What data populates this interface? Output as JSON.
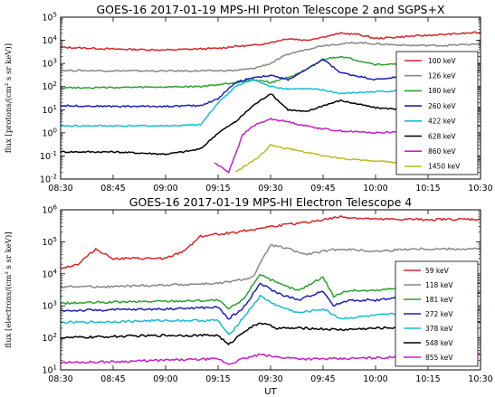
{
  "chart_data": [
    {
      "type": "line",
      "title": "GOES-16 2017-01-19 MPS-HI Proton Telescope 2 and SGPS+X",
      "ylabel": "flux [protons/(cm² s sr keV)]",
      "xlabel": "",
      "yscale": "log",
      "ylim_exp": [
        -2,
        5
      ],
      "ytick_labels": [
        "10^-2",
        "10^-1",
        "10^0",
        "10^1",
        "10^2",
        "10^3",
        "10^4",
        "10^5"
      ],
      "xlim": [
        "08:30",
        "10:30"
      ],
      "xtick_labels": [
        "08:30",
        "08:45",
        "09:00",
        "09:15",
        "09:30",
        "09:45",
        "10:00",
        "10:15",
        "10:30"
      ],
      "legend_position": "right",
      "series": [
        {
          "name": "100 keV",
          "color": "#d62728",
          "x": [
            "08:30",
            "08:45",
            "09:00",
            "09:15",
            "09:20",
            "09:25",
            "09:30",
            "09:35",
            "09:40",
            "09:45",
            "09:50",
            "09:55",
            "10:00",
            "10:10",
            "10:20",
            "10:30"
          ],
          "y": [
            5000,
            4200,
            3800,
            4500,
            5500,
            6000,
            8000,
            12000,
            10000,
            14000,
            20000,
            18000,
            12000,
            15000,
            18000,
            22000
          ]
        },
        {
          "name": "126 keV",
          "color": "#888888",
          "x": [
            "08:30",
            "08:45",
            "09:00",
            "09:15",
            "09:20",
            "09:25",
            "09:30",
            "09:35",
            "09:40",
            "09:45",
            "09:50",
            "09:55",
            "10:00",
            "10:10",
            "10:20",
            "10:30"
          ],
          "y": [
            500,
            480,
            470,
            480,
            500,
            600,
            1000,
            2500,
            4000,
            6000,
            7000,
            8000,
            7000,
            6000,
            6000,
            7000
          ]
        },
        {
          "name": "180 keV",
          "color": "#2ca02c",
          "x": [
            "08:30",
            "08:45",
            "09:00",
            "09:10",
            "09:15",
            "09:20",
            "09:25",
            "09:30",
            "09:35",
            "09:40",
            "09:45",
            "09:50",
            "10:00",
            "10:10",
            "10:20",
            "10:30"
          ],
          "y": [
            90,
            90,
            95,
            100,
            120,
            150,
            200,
            150,
            250,
            500,
            1500,
            2000,
            900,
            900,
            900,
            1000
          ]
        },
        {
          "name": "260 keV",
          "color": "#1f1fb4",
          "x": [
            "08:30",
            "08:45",
            "09:00",
            "09:10",
            "09:15",
            "09:20",
            "09:25",
            "09:30",
            "09:35",
            "09:40",
            "09:45",
            "09:50",
            "10:00",
            "10:10",
            "10:20",
            "10:30"
          ],
          "y": [
            15,
            14,
            14,
            15,
            30,
            150,
            250,
            300,
            200,
            500,
            1500,
            400,
            200,
            300,
            400,
            500
          ]
        },
        {
          "name": "422 keV",
          "color": "#17becf",
          "x": [
            "08:30",
            "08:45",
            "09:00",
            "09:10",
            "09:15",
            "09:20",
            "09:25",
            "09:30",
            "09:35",
            "09:40",
            "09:45",
            "09:50",
            "10:00",
            "10:10",
            "10:20",
            "10:30"
          ],
          "y": [
            2,
            2,
            2,
            2.2,
            20,
            100,
            200,
            100,
            80,
            80,
            70,
            50,
            60,
            70,
            80,
            90
          ]
        },
        {
          "name": "628 keV",
          "color": "#000000",
          "x": [
            "08:30",
            "08:45",
            "09:00",
            "09:05",
            "09:10",
            "09:15",
            "09:20",
            "09:25",
            "09:30",
            "09:35",
            "09:40",
            "09:45",
            "09:50",
            "10:00",
            "10:10",
            "10:20",
            "10:30"
          ],
          "y": [
            0.15,
            0.15,
            0.12,
            0.15,
            0.2,
            1,
            3,
            15,
            50,
            10,
            8,
            15,
            25,
            12,
            10,
            10,
            12
          ]
        },
        {
          "name": "860 keV",
          "color": "#c71fc7",
          "x": [
            "09:14",
            "09:18",
            "09:22",
            "09:25",
            "09:30",
            "09:35",
            "09:40",
            "09:45",
            "09:50",
            "10:00",
            "10:10",
            "10:20",
            "10:30"
          ],
          "y": [
            0.05,
            0.02,
            0.8,
            2,
            4,
            3,
            2,
            1.5,
            1.2,
            1,
            1.2,
            1.5,
            2
          ]
        },
        {
          "name": "1450 keV",
          "color": "#bcbd22",
          "x": [
            "09:20",
            "09:24",
            "09:27",
            "09:30",
            "09:35",
            "09:40",
            "09:45",
            "09:50",
            "10:00",
            "10:10",
            "10:20",
            "10:30"
          ],
          "y": [
            0.02,
            0.05,
            0.1,
            0.3,
            0.2,
            0.15,
            0.1,
            0.08,
            0.06,
            0.05,
            0.06,
            0.07
          ]
        }
      ]
    },
    {
      "type": "line",
      "title": "GOES-16 2017-01-19 MPS-HI Electron Telescope 4",
      "ylabel": "flux [electrons/(cm² s sr keV)]",
      "xlabel": "UT",
      "yscale": "log",
      "ylim_exp": [
        1,
        6
      ],
      "ytick_labels": [
        "10^1",
        "10^2",
        "10^3",
        "10^4",
        "10^5",
        "10^6"
      ],
      "xlim": [
        "08:30",
        "10:30"
      ],
      "xtick_labels": [
        "08:30",
        "08:45",
        "09:00",
        "09:15",
        "09:30",
        "09:45",
        "10:00",
        "10:15",
        "10:30"
      ],
      "legend_position": "right",
      "series": [
        {
          "name": "59 keV",
          "color": "#d62728",
          "x": [
            "08:30",
            "08:35",
            "08:40",
            "08:45",
            "09:00",
            "09:05",
            "09:10",
            "09:20",
            "09:30",
            "09:40",
            "09:50",
            "10:00",
            "10:10",
            "10:20",
            "10:30"
          ],
          "y": [
            15000,
            20000,
            60000,
            30000,
            30000,
            50000,
            150000,
            200000,
            300000,
            400000,
            600000,
            500000,
            500000,
            500000,
            500000
          ]
        },
        {
          "name": "118 keV",
          "color": "#888888",
          "x": [
            "08:30",
            "08:45",
            "09:00",
            "09:15",
            "09:20",
            "09:25",
            "09:30",
            "09:35",
            "09:40",
            "09:45",
            "09:50",
            "10:00",
            "10:10",
            "10:20",
            "10:30"
          ],
          "y": [
            4000,
            4000,
            4500,
            5000,
            6000,
            8000,
            80000,
            60000,
            40000,
            50000,
            60000,
            50000,
            60000,
            60000,
            60000
          ]
        },
        {
          "name": "181 keV",
          "color": "#2ca02c",
          "x": [
            "08:30",
            "08:45",
            "09:00",
            "09:15",
            "09:18",
            "09:22",
            "09:27",
            "09:32",
            "09:38",
            "09:45",
            "09:48",
            "09:52",
            "10:00",
            "10:10",
            "10:20",
            "10:30"
          ],
          "y": [
            1200,
            1300,
            1400,
            1500,
            800,
            1500,
            10000,
            5000,
            3000,
            8000,
            2000,
            3000,
            3000,
            4000,
            5000,
            5000
          ]
        },
        {
          "name": "272 keV",
          "color": "#1f1fb4",
          "x": [
            "08:30",
            "08:45",
            "09:00",
            "09:15",
            "09:18",
            "09:22",
            "09:27",
            "09:32",
            "09:38",
            "09:45",
            "09:48",
            "09:52",
            "10:00",
            "10:10",
            "10:20",
            "10:30"
          ],
          "y": [
            700,
            750,
            800,
            900,
            400,
            800,
            5000,
            2500,
            1500,
            3000,
            1000,
            1500,
            1500,
            2000,
            2000,
            2500
          ]
        },
        {
          "name": "378 keV",
          "color": "#17becf",
          "x": [
            "08:30",
            "08:45",
            "09:00",
            "09:15",
            "09:18",
            "09:22",
            "09:27",
            "09:32",
            "09:38",
            "09:45",
            "09:50",
            "10:00",
            "10:10",
            "10:20",
            "10:30"
          ],
          "y": [
            300,
            320,
            350,
            350,
            120,
            400,
            2000,
            1000,
            600,
            800,
            400,
            500,
            600,
            600,
            700
          ]
        },
        {
          "name": "548 keV",
          "color": "#000000",
          "x": [
            "08:30",
            "08:45",
            "09:00",
            "09:15",
            "09:18",
            "09:22",
            "09:27",
            "09:32",
            "09:40",
            "09:50",
            "10:00",
            "10:10",
            "10:20",
            "10:30"
          ],
          "y": [
            100,
            110,
            120,
            120,
            60,
            150,
            300,
            200,
            200,
            180,
            200,
            220,
            250,
            300
          ]
        },
        {
          "name": "855 keV",
          "color": "#c71fc7",
          "x": [
            "08:30",
            "08:45",
            "09:00",
            "09:15",
            "09:18",
            "09:22",
            "09:27",
            "09:32",
            "09:40",
            "09:50",
            "10:00",
            "10:10",
            "10:20",
            "10:30"
          ],
          "y": [
            17,
            18,
            20,
            22,
            15,
            22,
            30,
            25,
            22,
            22,
            24,
            25,
            28,
            30
          ]
        }
      ]
    }
  ]
}
